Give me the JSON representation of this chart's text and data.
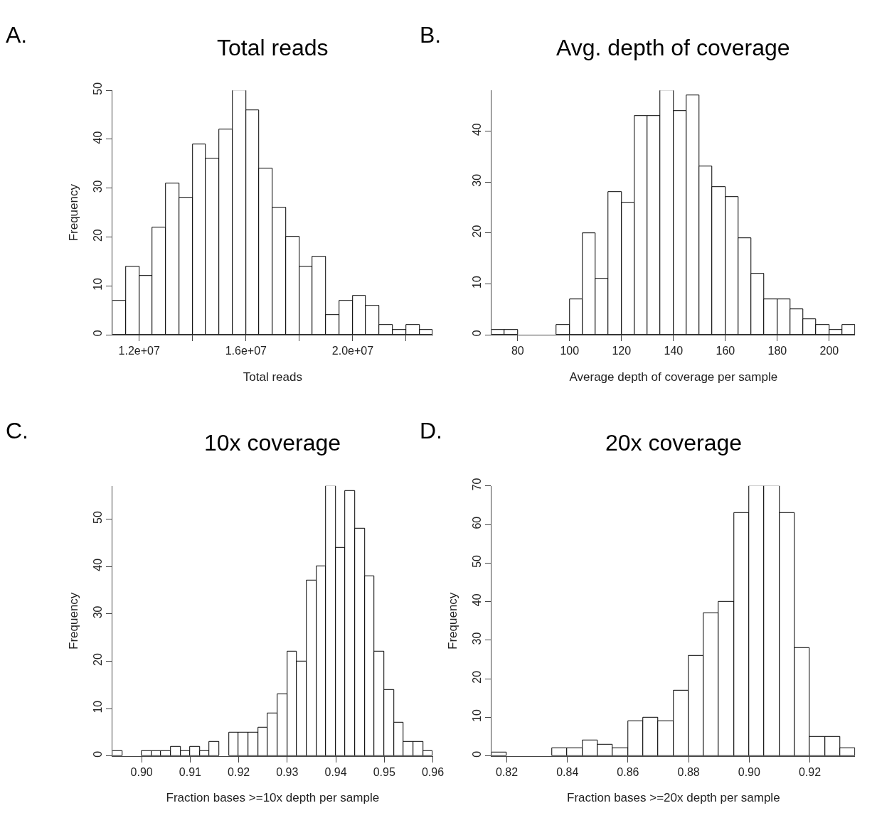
{
  "chart_data": [
    {
      "type": "histogram",
      "title": "Total reads",
      "xlabel": "Total reads",
      "ylabel": "Frequency",
      "annotations": [
        "A."
      ],
      "bins": [
        11000000,
        11500000,
        12000000,
        12500000,
        13000000,
        13500000,
        14000000,
        14500000,
        15000000,
        15500000,
        16000000,
        16500000,
        17000000,
        17500000,
        18000000,
        18500000,
        19000000,
        19500000,
        20000000,
        20500000,
        21000000,
        21500000,
        22000000,
        22500000,
        23000000
      ],
      "values": [
        7,
        14,
        12,
        22,
        31,
        28,
        39,
        36,
        42,
        50,
        46,
        34,
        26,
        20,
        14,
        16,
        4,
        7,
        8,
        6,
        2,
        1,
        2,
        1
      ],
      "xlim": [
        11000000,
        23000000
      ],
      "ylim": [
        0,
        50
      ],
      "xticks": [
        {
          "value": 12000000,
          "label": "1.2e+07"
        },
        {
          "value": 14000000,
          "label": null
        },
        {
          "value": 16000000,
          "label": "1.6e+07"
        },
        {
          "value": 18000000,
          "label": null
        },
        {
          "value": 20000000,
          "label": "2.0e+07"
        },
        {
          "value": 22000000,
          "label": null
        }
      ],
      "yticks": [
        0,
        10,
        20,
        30,
        40,
        50
      ],
      "color": "#ffffff"
    },
    {
      "type": "histogram",
      "title": "Avg. depth of coverage",
      "xlabel": "Average depth of coverage per sample",
      "annotations": [
        "B."
      ],
      "bins": [
        70,
        75,
        80,
        85,
        90,
        95,
        100,
        105,
        110,
        115,
        120,
        125,
        130,
        135,
        140,
        145,
        150,
        155,
        160,
        165,
        170,
        175,
        180,
        185,
        190,
        195,
        200,
        205,
        210
      ],
      "values": [
        1,
        1,
        0,
        0,
        0,
        2,
        7,
        20,
        11,
        28,
        26,
        43,
        43,
        48,
        44,
        47,
        33,
        29,
        27,
        19,
        12,
        7,
        7,
        5,
        3,
        2,
        1,
        2
      ],
      "xlim": [
        70,
        210
      ],
      "ylim": [
        0,
        48
      ],
      "xticks": [
        80,
        100,
        120,
        140,
        160,
        180,
        200
      ],
      "yticks": [
        0,
        10,
        20,
        30,
        40
      ],
      "color": "#ffffff"
    },
    {
      "type": "histogram",
      "title": "10x coverage",
      "xlabel": "Fraction bases >=10x depth per sample",
      "ylabel": "Frequency",
      "annotations": [
        "C."
      ],
      "bins": [
        0.894,
        0.896,
        0.898,
        0.9,
        0.902,
        0.904,
        0.906,
        0.908,
        0.91,
        0.912,
        0.914,
        0.916,
        0.918,
        0.92,
        0.922,
        0.924,
        0.926,
        0.928,
        0.93,
        0.932,
        0.934,
        0.936,
        0.938,
        0.94,
        0.942,
        0.944,
        0.946,
        0.948,
        0.95,
        0.952,
        0.954,
        0.956,
        0.958,
        0.96
      ],
      "values": [
        1,
        0,
        0,
        1,
        1,
        1,
        2,
        1,
        2,
        1,
        3,
        0,
        5,
        5,
        5,
        6,
        9,
        13,
        22,
        20,
        37,
        40,
        57,
        44,
        56,
        48,
        38,
        22,
        14,
        7,
        3,
        3,
        1
      ],
      "xlim": [
        0.894,
        0.96
      ],
      "ylim": [
        0,
        57
      ],
      "xticks": [
        {
          "value": 0.9,
          "label": "0.90"
        },
        {
          "value": 0.91,
          "label": "0.91"
        },
        {
          "value": 0.92,
          "label": "0.92"
        },
        {
          "value": 0.93,
          "label": "0.93"
        },
        {
          "value": 0.94,
          "label": "0.94"
        },
        {
          "value": 0.95,
          "label": "0.95"
        },
        {
          "value": 0.96,
          "label": "0.96"
        }
      ],
      "yticks": [
        0,
        10,
        20,
        30,
        40,
        50
      ],
      "color": "#ffffff"
    },
    {
      "type": "histogram",
      "title": "20x coverage",
      "xlabel": "Fraction bases >=20x depth per sample",
      "ylabel": "Frequency",
      "annotations": [
        "D."
      ],
      "bins": [
        0.815,
        0.82,
        0.825,
        0.83,
        0.835,
        0.84,
        0.845,
        0.85,
        0.855,
        0.86,
        0.865,
        0.87,
        0.875,
        0.88,
        0.885,
        0.89,
        0.895,
        0.9,
        0.905,
        0.91,
        0.915,
        0.92,
        0.925,
        0.93,
        0.935
      ],
      "values": [
        1,
        0,
        0,
        0,
        2,
        2,
        4,
        3,
        2,
        9,
        10,
        9,
        17,
        26,
        37,
        40,
        63,
        70,
        70,
        63,
        28,
        5,
        5,
        2
      ],
      "xlim": [
        0.815,
        0.935
      ],
      "ylim": [
        0,
        70
      ],
      "xticks": [
        {
          "value": 0.82,
          "label": "0.82"
        },
        {
          "value": 0.84,
          "label": "0.84"
        },
        {
          "value": 0.86,
          "label": "0.86"
        },
        {
          "value": 0.88,
          "label": "0.88"
        },
        {
          "value": 0.9,
          "label": "0.90"
        },
        {
          "value": 0.92,
          "label": "0.92"
        }
      ],
      "yticks": [
        0,
        10,
        20,
        30,
        40,
        50,
        60,
        70
      ],
      "color": "#ffffff"
    }
  ]
}
